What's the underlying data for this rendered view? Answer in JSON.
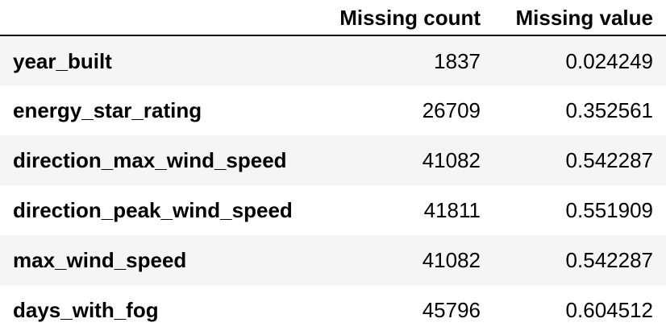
{
  "table": {
    "columns": [
      "Missing count",
      "Missing value"
    ],
    "rows": [
      {
        "index": "year_built",
        "missing_count": "1837",
        "missing_value": "0.024249"
      },
      {
        "index": "energy_star_rating",
        "missing_count": "26709",
        "missing_value": "0.352561"
      },
      {
        "index": "direction_max_wind_speed",
        "missing_count": "41082",
        "missing_value": "0.542287"
      },
      {
        "index": "direction_peak_wind_speed",
        "missing_count": "41811",
        "missing_value": "0.551909"
      },
      {
        "index": "max_wind_speed",
        "missing_count": "41082",
        "missing_value": "0.542287"
      },
      {
        "index": "days_with_fog",
        "missing_count": "45796",
        "missing_value": "0.604512"
      }
    ]
  }
}
